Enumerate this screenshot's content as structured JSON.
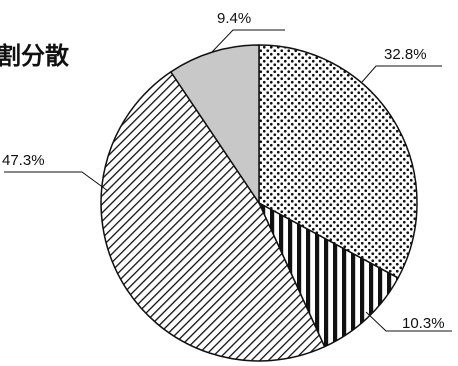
{
  "chart_data": {
    "type": "pie",
    "title": "割分散",
    "slices": [
      {
        "value": 32.8,
        "label": "32.8%",
        "pattern": "dots"
      },
      {
        "value": 10.3,
        "label": "10.3%",
        "pattern": "vertical-stripes"
      },
      {
        "value": 47.3,
        "label": "47.3%",
        "pattern": "diagonal-hatch"
      },
      {
        "value": 9.4,
        "label": "9.4%",
        "pattern": "solid-gray"
      }
    ],
    "colors": {
      "gray_fill": "#c8c8c8",
      "ink": "#111111",
      "background": "#ffffff"
    }
  }
}
